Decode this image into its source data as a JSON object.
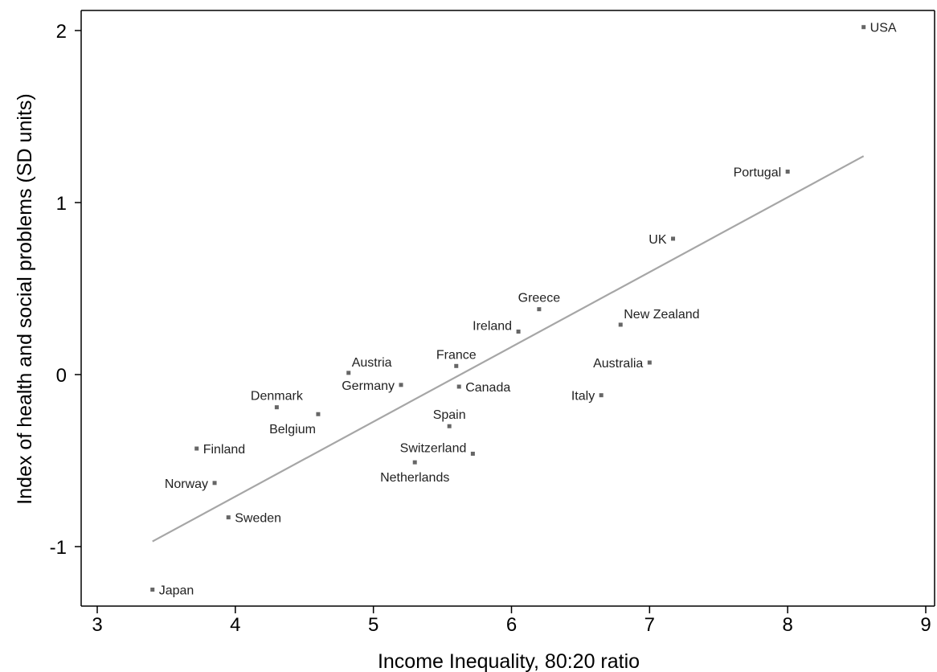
{
  "chart_data": {
    "type": "scatter",
    "title": "",
    "xlabel": "Income Inequality, 80:20 ratio",
    "ylabel": "Index of health and social problems (SD units)",
    "xlim": [
      3,
      9
    ],
    "ylim": [
      -1.3,
      2.1
    ],
    "xticks": [
      3,
      4,
      5,
      6,
      7,
      8,
      9
    ],
    "yticks": [
      -1,
      0,
      1,
      2
    ],
    "grid": false,
    "legend": "none",
    "colors": {
      "points": "#666666",
      "fit_line": "#a6a6a6",
      "axes": "#000000"
    },
    "points": [
      {
        "label": "USA",
        "x": 8.55,
        "y": 2.02,
        "pos": "right"
      },
      {
        "label": "Portugal",
        "x": 8.0,
        "y": 1.18,
        "pos": "left"
      },
      {
        "label": "UK",
        "x": 7.17,
        "y": 0.79,
        "pos": "left"
      },
      {
        "label": "New Zealand",
        "x": 6.79,
        "y": 0.29,
        "pos": "upright"
      },
      {
        "label": "Greece",
        "x": 6.2,
        "y": 0.38,
        "pos": "above"
      },
      {
        "label": "Ireland",
        "x": 6.05,
        "y": 0.25,
        "pos": "upleft"
      },
      {
        "label": "Australia",
        "x": 7.0,
        "y": 0.07,
        "pos": "left"
      },
      {
        "label": "Italy",
        "x": 6.65,
        "y": -0.12,
        "pos": "left"
      },
      {
        "label": "France",
        "x": 5.6,
        "y": 0.05,
        "pos": "above"
      },
      {
        "label": "Canada",
        "x": 5.62,
        "y": -0.07,
        "pos": "right"
      },
      {
        "label": "Spain",
        "x": 5.55,
        "y": -0.3,
        "pos": "above"
      },
      {
        "label": "Switzerland",
        "x": 5.72,
        "y": -0.46,
        "pos": "upleft"
      },
      {
        "label": "Netherlands",
        "x": 5.3,
        "y": -0.51,
        "pos": "below"
      },
      {
        "label": "Austria",
        "x": 4.82,
        "y": 0.01,
        "pos": "upright"
      },
      {
        "label": "Germany",
        "x": 5.2,
        "y": -0.06,
        "pos": "left"
      },
      {
        "label": "Denmark",
        "x": 4.3,
        "y": -0.19,
        "pos": "above"
      },
      {
        "label": "Belgium",
        "x": 4.6,
        "y": -0.23,
        "pos": "belowleft"
      },
      {
        "label": "Finland",
        "x": 3.72,
        "y": -0.43,
        "pos": "right"
      },
      {
        "label": "Norway",
        "x": 3.85,
        "y": -0.63,
        "pos": "left"
      },
      {
        "label": "Sweden",
        "x": 3.95,
        "y": -0.83,
        "pos": "right"
      },
      {
        "label": "Japan",
        "x": 3.4,
        "y": -1.25,
        "pos": "right"
      }
    ],
    "fit_line": {
      "x": [
        3.4,
        8.55
      ],
      "y": [
        -0.97,
        1.27
      ]
    }
  }
}
